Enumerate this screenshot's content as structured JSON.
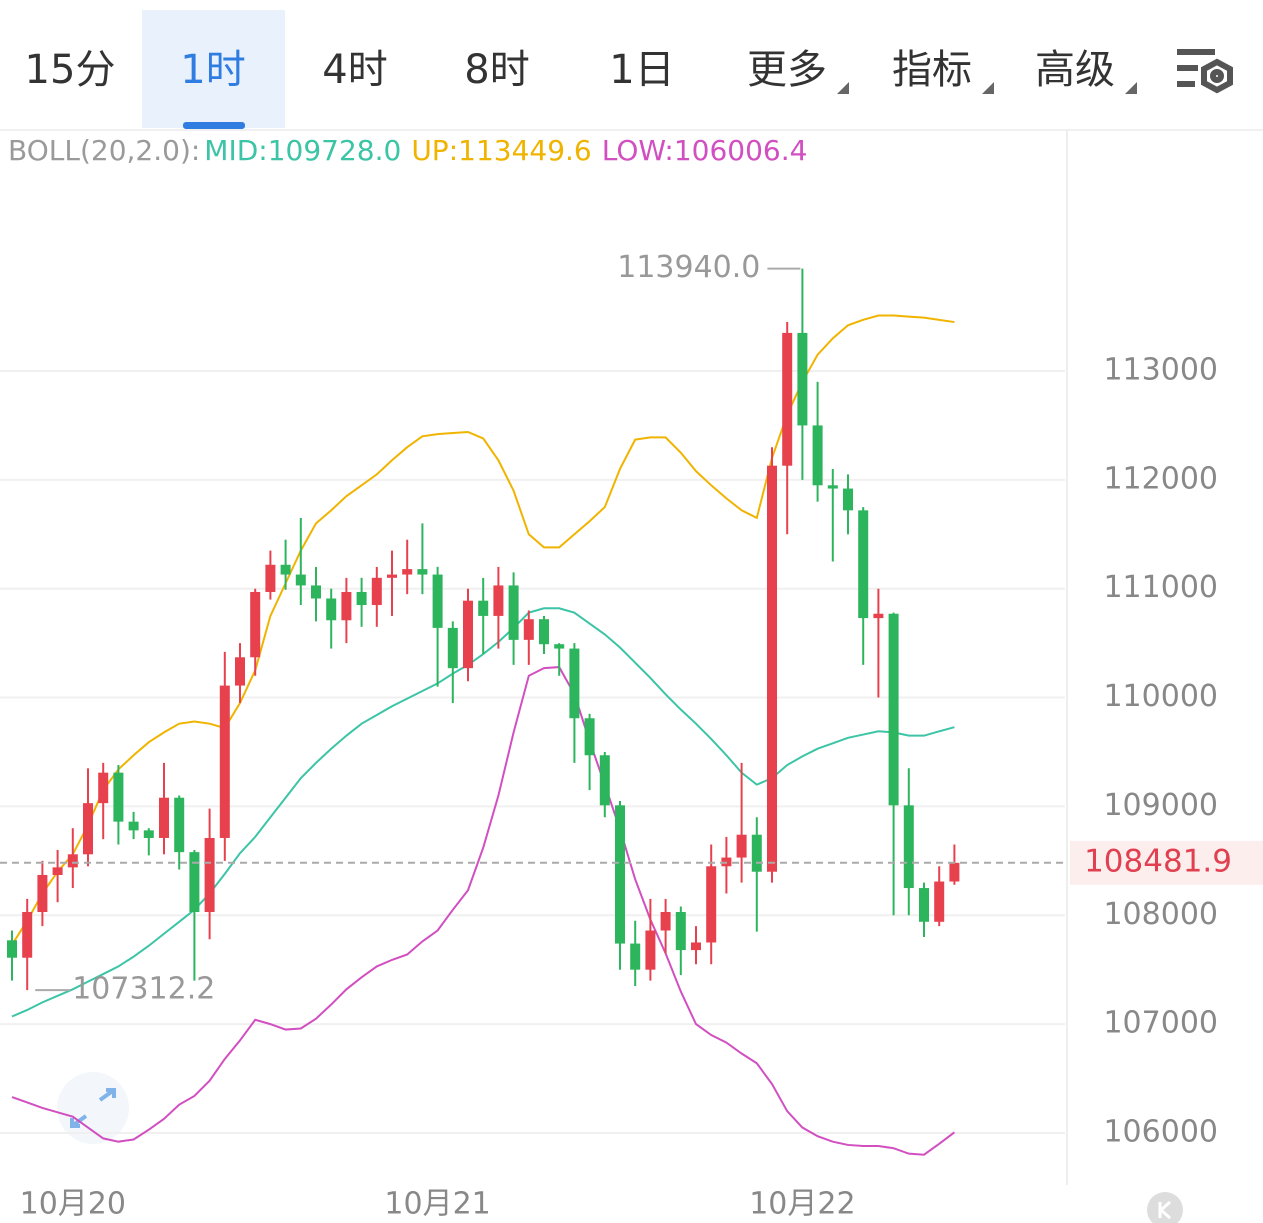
{
  "tabs": [
    "15分",
    "1时",
    "4时",
    "8时",
    "1日",
    "更多",
    "指标",
    "高级"
  ],
  "active_tab_index": 1,
  "dropdown_tabs": [
    5,
    6,
    7
  ],
  "chart_data": {
    "type": "candlestick",
    "indicator_label": "BOLL(20,2.0):",
    "categories": [
      null,
      null,
      null,
      null,
      "10月20",
      null,
      null,
      null,
      null,
      null,
      null,
      null,
      null,
      null,
      null,
      null,
      null,
      null,
      null,
      null,
      null,
      null,
      null,
      null,
      null,
      null,
      null,
      null,
      "10月21",
      null,
      null,
      null,
      null,
      null,
      null,
      null,
      null,
      null,
      null,
      null,
      null,
      null,
      null,
      null,
      null,
      null,
      null,
      null,
      null,
      null,
      null,
      null,
      "10月22",
      null,
      null,
      null,
      null,
      null,
      null,
      null,
      null,
      null,
      null
    ],
    "open": [
      107770,
      107610,
      108030,
      108370,
      108440,
      108560,
      109030,
      109310,
      108860,
      108780,
      108710,
      109080,
      108580,
      108030,
      108710,
      110110,
      110370,
      110970,
      111220,
      111130,
      111030,
      110910,
      110710,
      110970,
      110850,
      111100,
      111130,
      111180,
      111130,
      110640,
      110270,
      110890,
      110750,
      111030,
      110530,
      110720,
      110490,
      110450,
      109810,
      109470,
      109010,
      107740,
      107500,
      107860,
      108030,
      107680,
      107750,
      108450,
      108530,
      108740,
      108400,
      112130,
      113350,
      112500,
      111950,
      111920,
      111720,
      110730,
      110770,
      109010,
      108250,
      107940,
      108310
    ],
    "high": [
      107860,
      108150,
      108500,
      108600,
      108800,
      109350,
      109400,
      109380,
      108950,
      108800,
      109400,
      109100,
      108600,
      108980,
      110420,
      110500,
      111000,
      111350,
      111450,
      111650,
      111200,
      111000,
      111100,
      111100,
      111200,
      111350,
      111450,
      111600,
      111200,
      110700,
      111000,
      111100,
      111200,
      111150,
      110800,
      110750,
      110500,
      110500,
      109850,
      109500,
      109050,
      107950,
      108150,
      108150,
      108080,
      107900,
      108650,
      108720,
      109400,
      108900,
      112300,
      113450,
      113940.0,
      112900,
      112100,
      112050,
      111750,
      111000,
      110780,
      109350,
      108300,
      108450,
      108650
    ],
    "low": [
      107400,
      107312.2,
      107900,
      108120,
      108250,
      108450,
      108700,
      108650,
      108700,
      108550,
      108560,
      108420,
      107400,
      107780,
      108500,
      109950,
      110200,
      110900,
      110990,
      110850,
      110700,
      110450,
      110500,
      110650,
      110650,
      110750,
      110950,
      110950,
      110100,
      109950,
      110150,
      110400,
      110450,
      110300,
      110300,
      110400,
      110200,
      109400,
      109150,
      108900,
      107500,
      107350,
      107400,
      107650,
      107450,
      107550,
      107550,
      108200,
      108300,
      107850,
      108300,
      111500,
      112000,
      111800,
      111250,
      111500,
      110300,
      110000,
      108000,
      108000,
      107800,
      107900,
      108280
    ],
    "close": [
      107610,
      108030,
      108370,
      108440,
      108560,
      109030,
      109310,
      108860,
      108780,
      108710,
      109080,
      108580,
      108030,
      108710,
      110110,
      110370,
      110970,
      111220,
      111130,
      111030,
      110910,
      110710,
      110970,
      110850,
      111100,
      111130,
      111180,
      111130,
      110640,
      110270,
      110890,
      110750,
      111030,
      110530,
      110720,
      110490,
      110450,
      109810,
      109470,
      109010,
      107740,
      107500,
      107860,
      108030,
      107680,
      107750,
      108450,
      108530,
      108740,
      108400,
      112130,
      113350,
      112500,
      111950,
      111920,
      111720,
      110730,
      110770,
      109010,
      108250,
      107940,
      108310,
      108481.9
    ],
    "up_color": "#e8414e",
    "down_color": "#2db55d",
    "series": [
      {
        "name": "MID:109728.0",
        "color": "#3cc4a6",
        "values": [
          107070,
          107130,
          107200,
          107260,
          107320,
          107390,
          107460,
          107530,
          107620,
          107720,
          107830,
          107940,
          108050,
          108200,
          108380,
          108570,
          108720,
          108900,
          109080,
          109260,
          109400,
          109530,
          109650,
          109760,
          109840,
          109920,
          109990,
          110060,
          110130,
          110220,
          110300,
          110400,
          110510,
          110640,
          110780,
          110820,
          110820,
          110780,
          110680,
          110580,
          110460,
          110320,
          110180,
          110030,
          109890,
          109760,
          109620,
          109470,
          109310,
          109200,
          109260,
          109380,
          109460,
          109530,
          109580,
          109630,
          109660,
          109690,
          109680,
          109650,
          109650,
          109690,
          109728
        ]
      },
      {
        "name": "UP:113449.6",
        "color": "#f0b400",
        "values": [
          107730,
          107950,
          108200,
          108400,
          108560,
          108830,
          109150,
          109340,
          109470,
          109590,
          109680,
          109760,
          109780,
          109760,
          109720,
          109950,
          110250,
          110750,
          111050,
          111350,
          111600,
          111720,
          111850,
          111950,
          112050,
          112180,
          112300,
          112400,
          112420,
          112430,
          112440,
          112380,
          112180,
          111900,
          111500,
          111380,
          111380,
          111500,
          111620,
          111750,
          112100,
          112370,
          112390,
          112390,
          112250,
          112080,
          111950,
          111830,
          111720,
          111650,
          112200,
          112600,
          112900,
          113150,
          113300,
          113420,
          113470,
          113510,
          113510,
          113500,
          113490,
          113470,
          113449.6
        ]
      },
      {
        "name": "LOW:106006.4",
        "color": "#d14fc0",
        "values": [
          106330,
          106280,
          106230,
          106190,
          106150,
          106050,
          105950,
          105920,
          105940,
          106030,
          106130,
          106260,
          106340,
          106480,
          106680,
          106850,
          107040,
          107000,
          106950,
          106960,
          107050,
          107180,
          107320,
          107430,
          107530,
          107590,
          107640,
          107760,
          107860,
          108050,
          108230,
          108620,
          109100,
          109680,
          110200,
          110270,
          110280,
          110030,
          109600,
          109200,
          108790,
          108330,
          107960,
          107650,
          107300,
          107000,
          106900,
          106830,
          106730,
          106640,
          106450,
          106200,
          106050,
          105970,
          105920,
          105890,
          105880,
          105880,
          105860,
          105810,
          105800,
          105900,
          106006.4
        ]
      }
    ],
    "current_price": 108481.9,
    "annotations": {
      "max": {
        "index": 52,
        "value": 113940,
        "label": "113940.0"
      },
      "min": {
        "index": 1,
        "value": 107312.2
      }
    },
    "ylim": [
      105522,
      115214
    ],
    "yticks": [
      106000,
      107000,
      108000,
      109000,
      110000,
      111000,
      112000,
      113000
    ],
    "grid": true
  }
}
